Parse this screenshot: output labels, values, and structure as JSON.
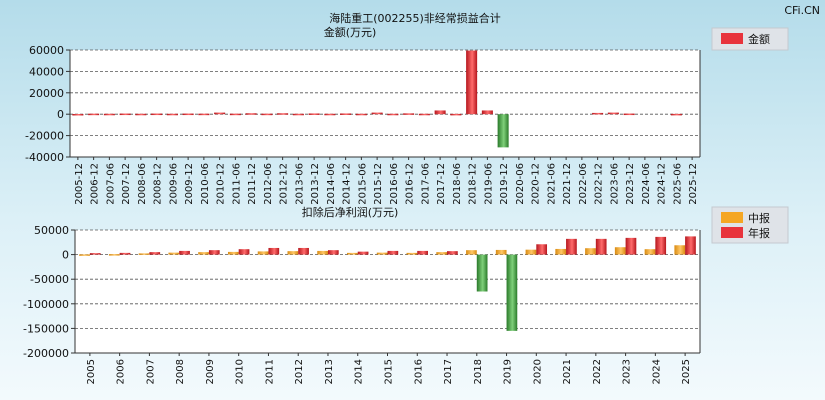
{
  "watermark": "CFi.CN",
  "chart_data": [
    {
      "type": "bar",
      "title": "海陆重工(002255)非经常损益合计",
      "subtitle": "金额(万元)",
      "legend": [
        "金额"
      ],
      "legend_position": "top-right",
      "colors": {
        "positive": "#e8333c",
        "negative": "#3a9a3a"
      },
      "categories": [
        "2005-12",
        "2006-12",
        "2007-06",
        "2007-12",
        "2008-06",
        "2008-12",
        "2009-06",
        "2009-12",
        "2010-06",
        "2010-12",
        "2011-06",
        "2011-12",
        "2012-06",
        "2012-12",
        "2013-06",
        "2013-12",
        "2014-06",
        "2014-12",
        "2015-06",
        "2015-12",
        "2016-06",
        "2016-12",
        "2017-06",
        "2017-12",
        "2018-06",
        "2018-12",
        "2019-06",
        "2019-12",
        "2020-06",
        "2020-12",
        "2021-06",
        "2021-12",
        "2022-06",
        "2022-12",
        "2023-06",
        "2023-12",
        "2024-06",
        "2024-12",
        "2025-06",
        "2025-12"
      ],
      "yticks": [
        "60000",
        "40000",
        "20000",
        "0",
        "-20000",
        "-40000"
      ],
      "ylim": [
        -40000,
        60000
      ],
      "series": [
        {
          "values": [
            200,
            500,
            400,
            600,
            400,
            600,
            400,
            600,
            500,
            1500,
            500,
            900,
            500,
            900,
            400,
            700,
            400,
            700,
            400,
            1500,
            400,
            800,
            400,
            3500,
            300,
            59500,
            3500,
            -31000,
            0,
            0,
            0,
            0,
            0,
            1200,
            1500,
            600,
            0,
            0,
            300,
            0
          ]
        }
      ]
    },
    {
      "type": "bar",
      "title": "扣除后净利润(万元)",
      "legend": [
        "中报",
        "年报"
      ],
      "legend_position": "top-right",
      "colors": {
        "interim": "#f5a623",
        "annual": "#e8333c",
        "negative": "#3a9a3a"
      },
      "categories": [
        "2005",
        "2006",
        "2007",
        "2008",
        "2009",
        "2010",
        "2011",
        "2012",
        "2013",
        "2014",
        "2015",
        "2016",
        "2017",
        "2018",
        "2019",
        "2020",
        "2021",
        "2022",
        "2023",
        "2024",
        "2025"
      ],
      "yticks": [
        "50000",
        "0",
        "-50000",
        "-100000",
        "-150000",
        "-200000"
      ],
      "ylim": [
        -200000,
        50000
      ],
      "series": [
        {
          "name": "中报",
          "values": [
            500,
            1000,
            2500,
            4000,
            5000,
            5500,
            6500,
            7000,
            7500,
            3500,
            4000,
            3500,
            5000,
            9000,
            9500,
            10000,
            11500,
            13000,
            15000,
            11000,
            19000
          ]
        },
        {
          "name": "年报",
          "values": [
            3000,
            3500,
            5000,
            7500,
            9000,
            11000,
            13500,
            13500,
            9000,
            6000,
            7500,
            7500,
            7000,
            -75000,
            -155000,
            21000,
            32000,
            32000,
            34000,
            36000,
            37000
          ]
        }
      ]
    }
  ]
}
